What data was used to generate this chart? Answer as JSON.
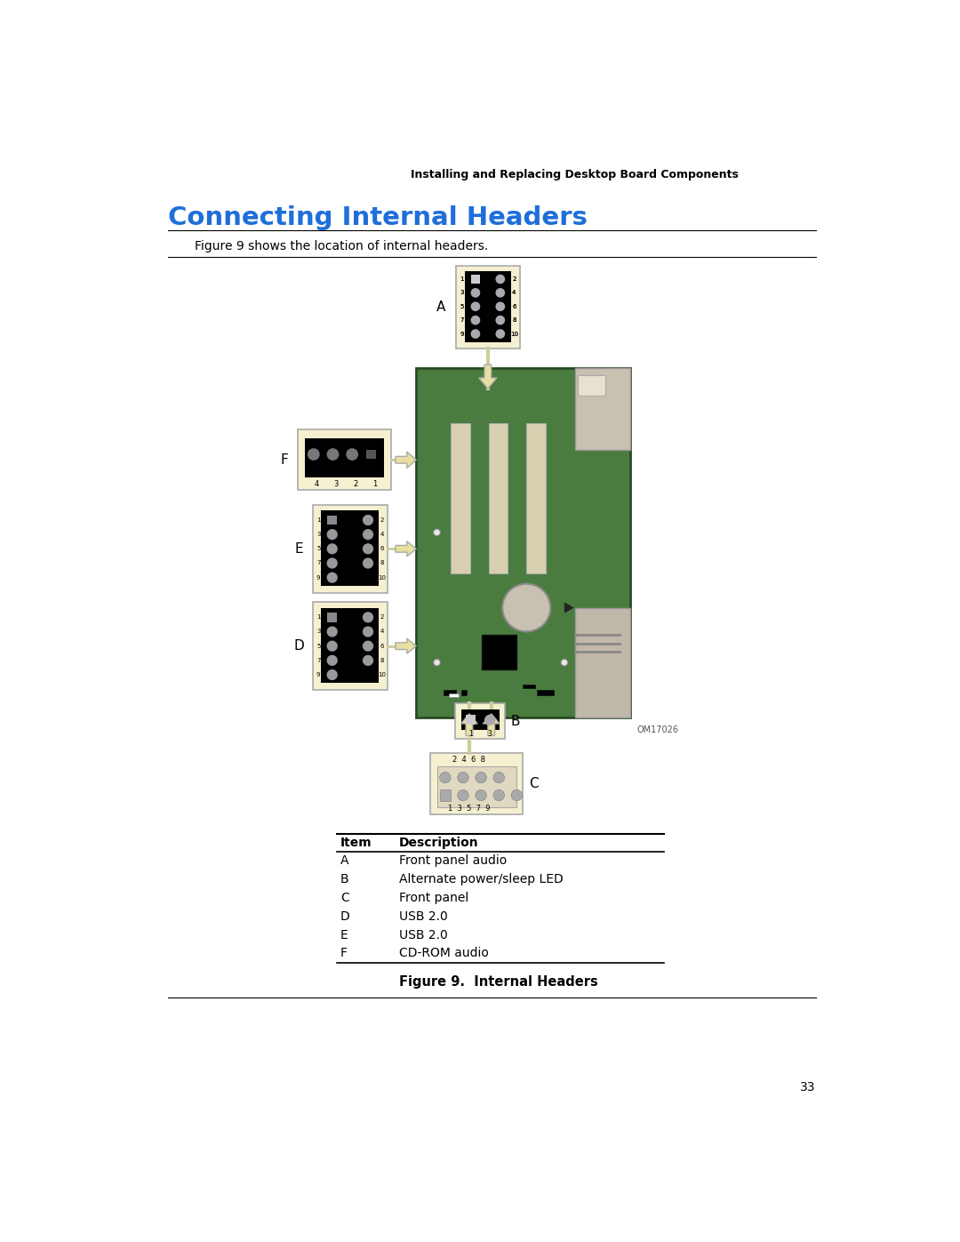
{
  "page_header": "Installing and Replacing Desktop Board Components",
  "section_title": "Connecting Internal Headers",
  "section_title_color": "#1E6FD9",
  "intro_text": "Figure 9 shows the location of internal headers.",
  "figure_caption": "Figure 9.  Internal Headers",
  "figure_id": "OM17026",
  "page_number": "33",
  "table_headers": [
    "Item",
    "Description"
  ],
  "table_rows": [
    [
      "A",
      "Front panel audio"
    ],
    [
      "B",
      "Alternate power/sleep LED"
    ],
    [
      "C",
      "Front panel"
    ],
    [
      "D",
      "USB 2.0"
    ],
    [
      "E",
      "USB 2.0"
    ],
    [
      "F",
      "CD-ROM audio"
    ]
  ],
  "board_color": "#4A7C40",
  "board_edge": "#2a4a25",
  "connector_bg": "#F5F0D0",
  "connector_border": "#AAAAAA",
  "arrow_color": "#E8E0A0",
  "arrow_edge_color": "#AAAAAA",
  "slot_color": "#D8D0B0",
  "gray_panel_color": "#C8C0B0",
  "gray_panel2_color": "#C0B8A8"
}
